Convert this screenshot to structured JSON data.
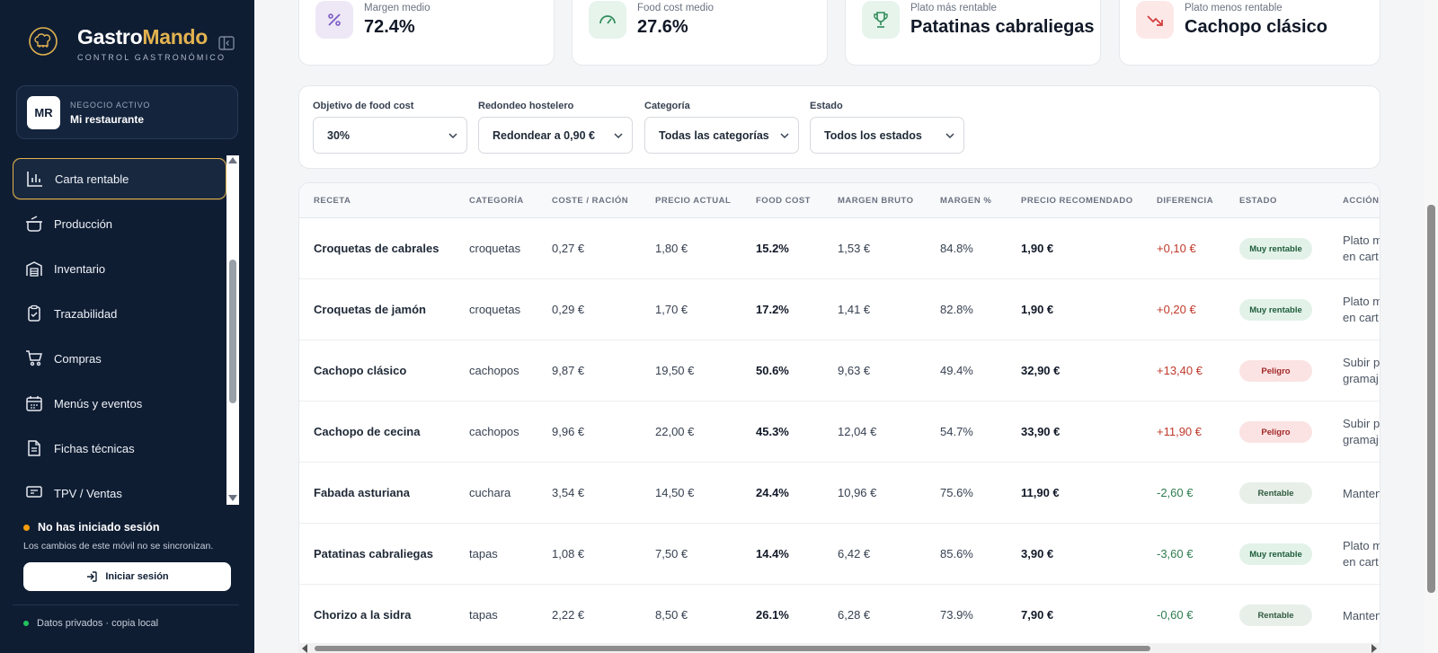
{
  "brand": {
    "name_a": "Gastro",
    "name_b": "Mando",
    "subtitle": "CONTROL GASTRONÓMICO"
  },
  "business": {
    "avatar": "MR",
    "label": "NEGOCIO ACTIVO",
    "name": "Mi restaurante"
  },
  "nav": [
    {
      "label": "Carta rentable",
      "icon": "bar-chart-icon",
      "active": true
    },
    {
      "label": "Producción",
      "icon": "cooking-pot-icon"
    },
    {
      "label": "Inventario",
      "icon": "warehouse-icon"
    },
    {
      "label": "Trazabilidad",
      "icon": "clipboard-check-icon"
    },
    {
      "label": "Compras",
      "icon": "cart-icon"
    },
    {
      "label": "Menús y eventos",
      "icon": "calendar-icon"
    },
    {
      "label": "Fichas técnicas",
      "icon": "document-icon"
    },
    {
      "label": "TPV / Ventas",
      "icon": "pos-icon"
    }
  ],
  "session": {
    "title": "No has iniciado sesión",
    "note": "Los cambios de este móvil no se sincronizan.",
    "login_label": "Iniciar sesión",
    "privacy": "Datos privados · copia local"
  },
  "kpis": [
    {
      "label": "Margen medio",
      "value": "72.4%",
      "icon": "percent-icon",
      "color": "#ede7f6",
      "fg": "#7c5cc4"
    },
    {
      "label": "Food cost medio",
      "value": "27.6%",
      "icon": "gauge-icon",
      "color": "#e6f4ec",
      "fg": "#2e8b57"
    },
    {
      "label": "Plato más rentable",
      "value": "Patatinas cabraliegas",
      "icon": "trophy-icon",
      "color": "#e6f4ec",
      "fg": "#2e8b57"
    },
    {
      "label": "Plato menos rentable",
      "value": "Cachopo clásico",
      "icon": "trending-down-icon",
      "color": "#fde8e8",
      "fg": "#d23c3c"
    }
  ],
  "filters": {
    "food_cost": {
      "label": "Objetivo de food cost",
      "value": "30%"
    },
    "rounding": {
      "label": "Redondeo hostelero",
      "value": "Redondear a 0,90 €"
    },
    "category": {
      "label": "Categoría",
      "value": "Todas las categorías"
    },
    "status": {
      "label": "Estado",
      "value": "Todos los estados"
    }
  },
  "table": {
    "headers": [
      "RECETA",
      "CATEGORÍA",
      "COSTE / RACIÓN",
      "PRECIO ACTUAL",
      "FOOD COST",
      "MARGEN BRUTO",
      "MARGEN %",
      "PRECIO RECOMENDADO",
      "DIFERENCIA",
      "ESTADO",
      "ACCIÓN"
    ],
    "rows": [
      {
        "name": "Croquetas de cabrales",
        "cat": "croquetas",
        "cost": "0,27 €",
        "price": "1,80 €",
        "fc": "15.2%",
        "mb": "1,53 €",
        "mp": "84.8%",
        "rec": "1,90 €",
        "diff": "+0,10 €",
        "status": "Muy rentable",
        "action": "Plato m\nen cart"
      },
      {
        "name": "Croquetas de jamón",
        "cat": "croquetas",
        "cost": "0,29 €",
        "price": "1,70 €",
        "fc": "17.2%",
        "mb": "1,41 €",
        "mp": "82.8%",
        "rec": "1,90 €",
        "diff": "+0,20 €",
        "status": "Muy rentable",
        "action": "Plato m\nen cart"
      },
      {
        "name": "Cachopo clásico",
        "cat": "cachopos",
        "cost": "9,87 €",
        "price": "19,50 €",
        "fc": "50.6%",
        "mb": "9,63 €",
        "mp": "49.4%",
        "rec": "32,90 €",
        "diff": "+13,40 €",
        "status": "Peligro",
        "action": "Subir p\ngramaj"
      },
      {
        "name": "Cachopo de cecina",
        "cat": "cachopos",
        "cost": "9,96 €",
        "price": "22,00 €",
        "fc": "45.3%",
        "mb": "12,04 €",
        "mp": "54.7%",
        "rec": "33,90 €",
        "diff": "+11,90 €",
        "status": "Peligro",
        "action": "Subir p\ngramaj"
      },
      {
        "name": "Fabada asturiana",
        "cat": "cuchara",
        "cost": "3,54 €",
        "price": "14,50 €",
        "fc": "24.4%",
        "mb": "10,96 €",
        "mp": "75.6%",
        "rec": "11,90 €",
        "diff": "-2,60 €",
        "status": "Rentable",
        "action": "Manten"
      },
      {
        "name": "Patatinas cabraliegas",
        "cat": "tapas",
        "cost": "1,08 €",
        "price": "7,50 €",
        "fc": "14.4%",
        "mb": "6,42 €",
        "mp": "85.6%",
        "rec": "3,90 €",
        "diff": "-3,60 €",
        "status": "Muy rentable",
        "action": "Plato m\nen cart"
      },
      {
        "name": "Chorizo a la sidra",
        "cat": "tapas",
        "cost": "2,22 €",
        "price": "8,50 €",
        "fc": "26.1%",
        "mb": "6,28 €",
        "mp": "73.9%",
        "rec": "7,90 €",
        "diff": "-0,60 €",
        "status": "Rentable",
        "action": "Manten"
      }
    ]
  }
}
